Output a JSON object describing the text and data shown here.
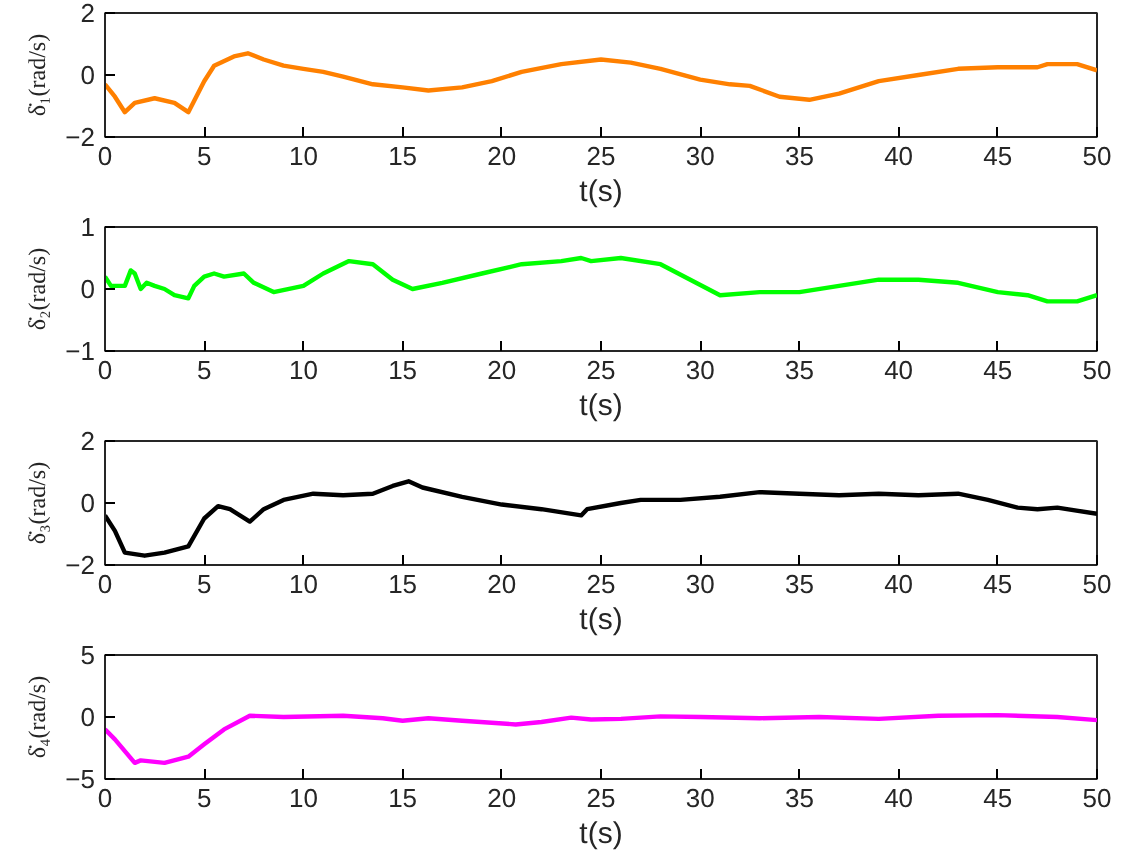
{
  "chart_data": [
    {
      "type": "line",
      "xlabel": "t(s)",
      "ylabel": "δ̇₁(rad/s)",
      "xlim": [
        0,
        50
      ],
      "xticks": [
        0,
        5,
        10,
        15,
        20,
        25,
        30,
        35,
        40,
        45,
        50
      ],
      "ylim": [
        -2,
        2
      ],
      "yticks": [
        -2,
        0,
        2
      ],
      "grid": false,
      "x": [
        0,
        0.5,
        1,
        1.5,
        2.5,
        3.5,
        4.2,
        5,
        5.5,
        6.5,
        7.2,
        8,
        9,
        10,
        11,
        12,
        13.5,
        15,
        16.3,
        18,
        19.5,
        21,
        23,
        25,
        26.5,
        28,
        30,
        31.5,
        32.5,
        34,
        35.5,
        37,
        39,
        41,
        43,
        45,
        47,
        47.5,
        49,
        50
      ],
      "series": [
        {
          "color": "#ff8000",
          "values": [
            -0.3,
            -0.7,
            -1.2,
            -0.9,
            -0.75,
            -0.9,
            -1.2,
            -0.2,
            0.3,
            0.6,
            0.7,
            0.5,
            0.3,
            0.2,
            0.1,
            -0.05,
            -0.3,
            -0.4,
            -0.5,
            -0.4,
            -0.2,
            0.1,
            0.35,
            0.5,
            0.4,
            0.2,
            -0.15,
            -0.3,
            -0.35,
            -0.7,
            -0.8,
            -0.6,
            -0.2,
            0,
            0.2,
            0.25,
            0.25,
            0.35,
            0.35,
            0.15
          ]
        }
      ]
    },
    {
      "type": "line",
      "xlabel": "t(s)",
      "ylabel": "δ̇₂(rad/s)",
      "xlim": [
        0,
        50
      ],
      "xticks": [
        0,
        5,
        10,
        15,
        20,
        25,
        30,
        35,
        40,
        45,
        50
      ],
      "ylim": [
        -1,
        1
      ],
      "yticks": [
        -1,
        0,
        1
      ],
      "grid": false,
      "x": [
        0,
        0.3,
        1,
        1.3,
        1.5,
        1.8,
        2.1,
        2.5,
        3,
        3.5,
        4.2,
        4.5,
        5,
        5.5,
        6,
        7,
        7.5,
        8.5,
        10,
        11,
        12.3,
        13.5,
        14.5,
        15.5,
        17,
        19,
        21,
        23,
        24,
        24.5,
        26,
        28,
        29.5,
        31,
        33,
        35,
        37,
        39,
        41,
        43,
        45,
        46.5,
        47.5,
        49,
        50
      ],
      "series": [
        {
          "color": "#00ff00",
          "values": [
            0.2,
            0.05,
            0.05,
            0.3,
            0.25,
            0.0,
            0.1,
            0.05,
            0.0,
            -0.1,
            -0.15,
            0.05,
            0.2,
            0.25,
            0.2,
            0.25,
            0.1,
            -0.05,
            0.05,
            0.25,
            0.45,
            0.4,
            0.15,
            0.0,
            0.1,
            0.25,
            0.4,
            0.45,
            0.5,
            0.45,
            0.5,
            0.4,
            0.15,
            -0.1,
            -0.05,
            -0.05,
            0.05,
            0.15,
            0.15,
            0.1,
            -0.05,
            -0.1,
            -0.2,
            -0.2,
            -0.1
          ]
        }
      ]
    },
    {
      "type": "line",
      "xlabel": "t(s)",
      "ylabel": "δ̇₃(rad/s)",
      "xlim": [
        0,
        50
      ],
      "xticks": [
        0,
        5,
        10,
        15,
        20,
        25,
        30,
        35,
        40,
        45,
        50
      ],
      "ylim": [
        -2,
        2
      ],
      "yticks": [
        -2,
        0,
        2
      ],
      "grid": false,
      "x": [
        0,
        0.5,
        1,
        2,
        3,
        4.2,
        5,
        5.7,
        6.3,
        7.3,
        8,
        9,
        10.5,
        12,
        13.5,
        14.5,
        15.3,
        16,
        18,
        20,
        22,
        24,
        24.3,
        26,
        27,
        29,
        31,
        33,
        35,
        37,
        39,
        41,
        43,
        44.5,
        46,
        47,
        48,
        50
      ],
      "series": [
        {
          "color": "#000000",
          "values": [
            -0.4,
            -0.9,
            -1.6,
            -1.7,
            -1.6,
            -1.4,
            -0.5,
            -0.1,
            -0.2,
            -0.6,
            -0.2,
            0.1,
            0.3,
            0.25,
            0.3,
            0.55,
            0.7,
            0.5,
            0.2,
            -0.05,
            -0.2,
            -0.4,
            -0.2,
            0,
            0.1,
            0.1,
            0.2,
            0.35,
            0.3,
            0.25,
            0.3,
            0.25,
            0.3,
            0.1,
            -0.15,
            -0.2,
            -0.15,
            -0.35
          ]
        }
      ]
    },
    {
      "type": "line",
      "xlabel": "t(s)",
      "ylabel": "δ̇₄(rad/s)",
      "xlim": [
        0,
        50
      ],
      "xticks": [
        0,
        5,
        10,
        15,
        20,
        25,
        30,
        35,
        40,
        45,
        50
      ],
      "ylim": [
        -5,
        5
      ],
      "yticks": [
        -5,
        0,
        5
      ],
      "grid": false,
      "x": [
        0,
        0.5,
        1.5,
        1.8,
        3,
        4.2,
        5,
        6,
        7.3,
        9,
        12,
        14,
        15,
        16.3,
        18,
        20.7,
        22,
        23.5,
        24.5,
        26,
        28,
        30,
        33,
        36,
        39,
        42,
        45,
        48,
        50
      ],
      "series": [
        {
          "color": "#ff00ff",
          "values": [
            -1,
            -1.8,
            -3.7,
            -3.5,
            -3.7,
            -3.2,
            -2.2,
            -1,
            0.1,
            0,
            0.1,
            -0.1,
            -0.3,
            -0.1,
            -0.3,
            -0.6,
            -0.4,
            -0.05,
            -0.2,
            -0.15,
            0.05,
            0,
            -0.1,
            0,
            -0.15,
            0.1,
            0.15,
            0,
            -0.25
          ]
        }
      ]
    }
  ]
}
